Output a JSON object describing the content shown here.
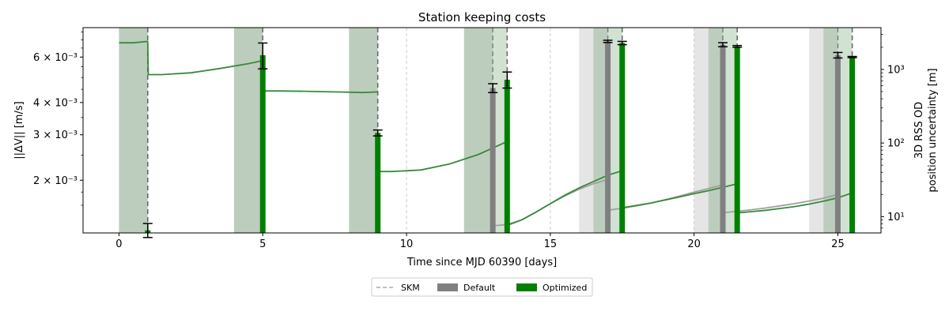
{
  "chart_data": {
    "type": "bar",
    "title": "Station keeping costs",
    "xlabel": "Time since MJD 60390 [days]",
    "ylabel": "||ΔV|| [m/s]",
    "y2label_line1": "3D RSS OD",
    "y2label_line2": "position uncertainty [m]",
    "xlim": [
      -1.25,
      26.5
    ],
    "ylim": [
      0.00125,
      0.0078
    ],
    "y2lim": [
      6,
      3700
    ],
    "yscale": "log",
    "y2scale": "log",
    "x_ticks": [
      {
        "value": 0,
        "label": "0"
      },
      {
        "value": 5,
        "label": "5"
      },
      {
        "value": 10,
        "label": "10"
      },
      {
        "value": 15,
        "label": "15"
      },
      {
        "value": 20,
        "label": "20"
      },
      {
        "value": 25,
        "label": "25"
      }
    ],
    "y_ticks": [
      {
        "value": 0.002,
        "label": "2 × 10⁻³"
      },
      {
        "value": 0.003,
        "label": "3 × 10⁻³"
      },
      {
        "value": 0.004,
        "label": "4 × 10⁻³"
      },
      {
        "value": 0.006,
        "label": "6 × 10⁻³"
      }
    ],
    "y2_ticks": [
      {
        "value": 10,
        "label": "10¹"
      },
      {
        "value": 100,
        "label": "10²"
      },
      {
        "value": 1000,
        "label": "10³"
      }
    ],
    "skm_times": [
      1,
      5,
      9,
      13,
      13.5,
      17,
      17.5,
      21,
      21.5,
      25,
      25.5
    ],
    "optimized_skm_times": [
      1,
      5,
      9,
      13.5,
      17.5,
      21.5,
      25.5
    ],
    "gridlines_x": [
      10,
      15,
      20
    ],
    "tracking_windows": {
      "default": [
        [
          0,
          1
        ],
        [
          4,
          5
        ],
        [
          8,
          9
        ],
        [
          12,
          13
        ],
        [
          16,
          17
        ],
        [
          20,
          21
        ],
        [
          24,
          25
        ]
      ],
      "optimized": [
        [
          0,
          1
        ],
        [
          4,
          5
        ],
        [
          8,
          9
        ],
        [
          12,
          13.5
        ],
        [
          16.5,
          17.5
        ],
        [
          20.5,
          21.5
        ],
        [
          24.5,
          25.5
        ]
      ]
    },
    "bars": {
      "default": [
        {
          "x": 13,
          "value": 0.00455,
          "err": 0.00018
        },
        {
          "x": 17,
          "value": 0.0069,
          "err": 7e-05
        },
        {
          "x": 21,
          "value": 0.0067,
          "err": 0.00012
        },
        {
          "x": 25,
          "value": 0.0061,
          "err": 0.00015
        }
      ],
      "optimized": [
        {
          "x": 1,
          "value": 0.00128,
          "err": 8e-05
        },
        {
          "x": 5,
          "value": 0.0061,
          "err": 0.0007
        },
        {
          "x": 9,
          "value": 0.00305,
          "err": 8e-05
        },
        {
          "x": 13.5,
          "value": 0.0049,
          "err": 0.00035
        },
        {
          "x": 17.5,
          "value": 0.0068,
          "err": 0.0001
        },
        {
          "x": 21.5,
          "value": 0.0066,
          "err": 5e-05
        },
        {
          "x": 25.5,
          "value": 0.006,
          "err": 3e-05
        }
      ]
    },
    "uncertainty_series": {
      "optimized": [
        [
          [
            0,
            2300
          ],
          [
            0.5,
            2300
          ],
          [
            0.97,
            2400
          ],
          [
            1,
            2400
          ],
          [
            1.02,
            850
          ],
          [
            1.5,
            850
          ],
          [
            2.5,
            900
          ],
          [
            3.5,
            1030
          ],
          [
            4.5,
            1200
          ],
          [
            5,
            1320
          ]
        ],
        [
          [
            5,
            510
          ],
          [
            5.5,
            510
          ],
          [
            6.5,
            505
          ],
          [
            7.5,
            495
          ],
          [
            8.5,
            485
          ],
          [
            9,
            495
          ]
        ],
        [
          [
            9,
            41
          ],
          [
            9.5,
            41
          ],
          [
            10.5,
            43
          ],
          [
            11.5,
            52
          ],
          [
            12.5,
            70
          ],
          [
            13.5,
            105
          ]
        ],
        [
          [
            13.5,
            7.6
          ],
          [
            14,
            9
          ],
          [
            14.5,
            11.5
          ],
          [
            15,
            15
          ],
          [
            15.5,
            19.5
          ],
          [
            16,
            24.5
          ],
          [
            16.5,
            30
          ],
          [
            17,
            36.5
          ],
          [
            17.5,
            42
          ]
        ],
        [
          [
            17.5,
            13.2
          ],
          [
            18,
            14.2
          ],
          [
            18.5,
            15.3
          ],
          [
            19,
            16.8
          ],
          [
            19.5,
            18.5
          ],
          [
            20,
            20.5
          ],
          [
            20.5,
            22.5
          ],
          [
            21,
            25
          ],
          [
            21.5,
            28
          ]
        ],
        [
          [
            21.5,
            11.2
          ],
          [
            22,
            11.7
          ],
          [
            22.5,
            12.2
          ],
          [
            23,
            12.9
          ],
          [
            23.5,
            13.7
          ],
          [
            24,
            14.8
          ],
          [
            24.5,
            16.2
          ],
          [
            25,
            18
          ],
          [
            25.5,
            21
          ]
        ]
      ],
      "default": [
        [
          [
            13,
            7.5
          ],
          [
            13.5,
            7.8
          ],
          [
            14,
            9
          ],
          [
            14.5,
            11.5
          ],
          [
            15,
            15
          ],
          [
            15.5,
            19
          ],
          [
            16,
            23.5
          ],
          [
            16.5,
            28
          ],
          [
            17,
            32
          ]
        ],
        [
          [
            17,
            12.2
          ],
          [
            17.5,
            13
          ],
          [
            18,
            14
          ],
          [
            18.5,
            15.3
          ],
          [
            19,
            17
          ],
          [
            19.5,
            19
          ],
          [
            20,
            21.5
          ],
          [
            20.5,
            24
          ],
          [
            21,
            27
          ]
        ],
        [
          [
            21,
            11.3
          ],
          [
            21.5,
            11.8
          ],
          [
            22,
            12.4
          ],
          [
            22.5,
            13.1
          ],
          [
            23,
            14
          ],
          [
            23.5,
            15
          ],
          [
            24,
            16.3
          ],
          [
            24.5,
            17.8
          ],
          [
            25,
            20
          ]
        ]
      ]
    },
    "legend": {
      "placement": "bottom-center",
      "items": [
        {
          "label": "SKM",
          "kind": "dashed-line"
        },
        {
          "label": "Default",
          "kind": "patch"
        },
        {
          "label": "Optimized",
          "kind": "patch"
        }
      ]
    },
    "colors": {
      "default_bar": "#808080",
      "optimized_bar": "#008000",
      "optimized_line": "#3a8a3a",
      "default_line": "#a0a0a0",
      "window_default": "#bfbfbf",
      "window_optimized": "#2e7d32",
      "skm_line": "#555555",
      "gridline": "#cccccc",
      "errorbar": "#000000",
      "legend_skm": "#aaaaaa"
    }
  }
}
